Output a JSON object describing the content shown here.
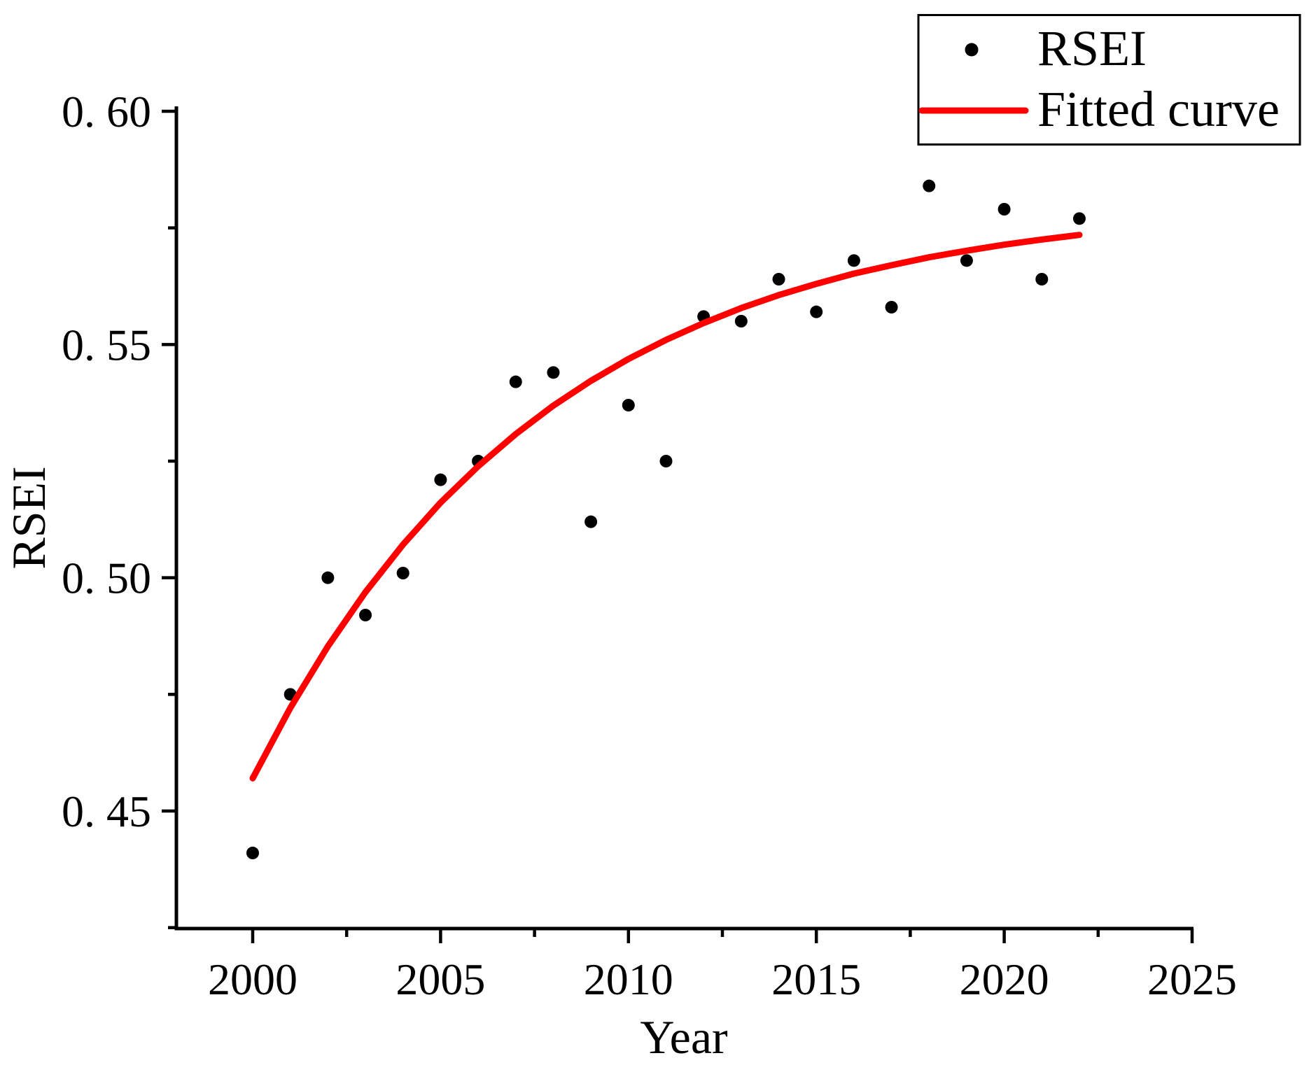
{
  "chart_data": {
    "type": "scatter",
    "title": "",
    "xlabel": "Year",
    "ylabel": "RSEI",
    "grid": false,
    "xlim": [
      1997.9,
      2025.1
    ],
    "ylim": [
      0.4248,
      0.601
    ],
    "x_axis": {
      "major_ticks": [
        2000,
        2005,
        2010,
        2015,
        2020,
        2025
      ],
      "major_labels": [
        "2000",
        "2005",
        "2010",
        "2015",
        "2020",
        "2025"
      ],
      "minor_ticks": [
        2002.5,
        2007.5,
        2012.5,
        2017.5,
        2022.5
      ]
    },
    "y_axis": {
      "major_ticks": [
        0.45,
        0.5,
        0.55,
        0.6
      ],
      "major_labels": [
        "0. 45",
        "0. 50",
        "0. 55",
        "0. 60"
      ],
      "minor_ticks": [
        0.425,
        0.475,
        0.525,
        0.575
      ]
    },
    "series": [
      {
        "name": "RSEI",
        "kind": "scatter",
        "color": "#000000",
        "x": [
          2000,
          2001,
          2002,
          2003,
          2004,
          2005,
          2006,
          2007,
          2008,
          2009,
          2010,
          2011,
          2012,
          2013,
          2014,
          2015,
          2016,
          2017,
          2018,
          2019,
          2020,
          2021,
          2022
        ],
        "y": [
          0.441,
          0.475,
          0.5,
          0.492,
          0.501,
          0.521,
          0.525,
          0.542,
          0.544,
          0.512,
          0.537,
          0.525,
          0.556,
          0.555,
          0.564,
          0.557,
          0.568,
          0.558,
          0.584,
          0.568,
          0.579,
          0.564,
          0.577
        ]
      },
      {
        "name": "Fitted curve",
        "kind": "line",
        "color": "#ff0000",
        "x": [
          2000,
          2001,
          2002,
          2003,
          2004,
          2005,
          2006,
          2007,
          2008,
          2009,
          2010,
          2011,
          2012,
          2013,
          2014,
          2015,
          2016,
          2017,
          2018,
          2019,
          2020,
          2021,
          2022
        ],
        "y": [
          0.457,
          0.4721,
          0.4853,
          0.4969,
          0.5071,
          0.5161,
          0.5239,
          0.5308,
          0.5369,
          0.5422,
          0.5469,
          0.551,
          0.5546,
          0.5578,
          0.5606,
          0.563,
          0.5652,
          0.567,
          0.5687,
          0.5701,
          0.5714,
          0.5725,
          0.5735
        ]
      }
    ],
    "legend": {
      "position": "top-right",
      "items": [
        {
          "label": "RSEI",
          "marker": "dot",
          "color": "#000000"
        },
        {
          "label": "Fitted curve",
          "marker": "line",
          "color": "#ff0000"
        }
      ]
    }
  }
}
